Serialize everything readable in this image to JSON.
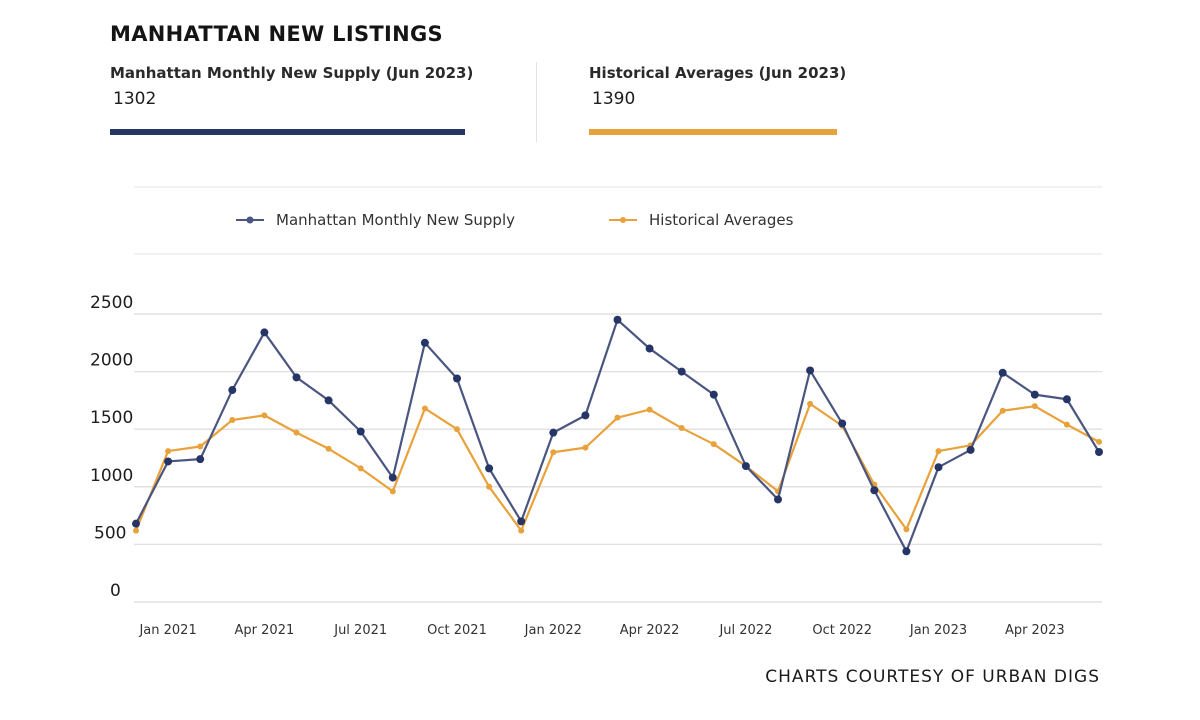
{
  "title": "MANHATTAN NEW LISTINGS",
  "kpis": [
    {
      "label": "Manhattan Monthly New Supply  (Jun 2023)",
      "value": "1302",
      "color": "#253566"
    },
    {
      "label": "Historical Averages  (Jun 2023)",
      "value": "1390",
      "color": "#e9a23b"
    }
  ],
  "credits": "CHARTS COURTESY OF URBAN DIGS",
  "chart_data": {
    "type": "line",
    "x": [
      "Dec 2020",
      "Jan 2021",
      "Feb 2021",
      "Mar 2021",
      "Apr 2021",
      "May 2021",
      "Jun 2021",
      "Jul 2021",
      "Aug 2021",
      "Sep 2021",
      "Oct 2021",
      "Nov 2021",
      "Dec 2021",
      "Jan 2022",
      "Feb 2022",
      "Mar 2022",
      "Apr 2022",
      "May 2022",
      "Jun 2022",
      "Jul 2022",
      "Aug 2022",
      "Sep 2022",
      "Oct 2022",
      "Nov 2022",
      "Dec 2022",
      "Jan 2023",
      "Feb 2023",
      "Mar 2023",
      "Apr 2023",
      "May 2023",
      "Jun 2023"
    ],
    "series": [
      {
        "name": "Manhattan Monthly New Supply",
        "color": "#4a5680",
        "values": [
          680,
          1220,
          1240,
          1840,
          2340,
          1950,
          1750,
          1480,
          1080,
          2250,
          1940,
          1160,
          700,
          1470,
          1620,
          2450,
          2200,
          2000,
          1800,
          1180,
          890,
          2010,
          1550,
          970,
          440,
          1170,
          1320,
          1990,
          1800,
          1760,
          1302
        ]
      },
      {
        "name": "Historical Averages",
        "color": "#e9a23b",
        "values": [
          620,
          1310,
          1350,
          1580,
          1620,
          1470,
          1330,
          1160,
          960,
          1680,
          1500,
          1000,
          620,
          1300,
          1340,
          1600,
          1670,
          1510,
          1370,
          1180,
          960,
          1720,
          1530,
          1020,
          630,
          1310,
          1360,
          1660,
          1700,
          1540,
          1390
        ]
      }
    ],
    "xticks": [
      "Jan 2021",
      "Apr 2021",
      "Jul 2021",
      "Oct 2021",
      "Jan 2022",
      "Apr 2022",
      "Jul 2022",
      "Oct 2022",
      "Jan 2023",
      "Apr 2023"
    ],
    "yticks": [
      0,
      500,
      1000,
      1500,
      2000,
      2500
    ],
    "ylim": [
      0,
      2500
    ],
    "grid": true,
    "legend": "top"
  }
}
